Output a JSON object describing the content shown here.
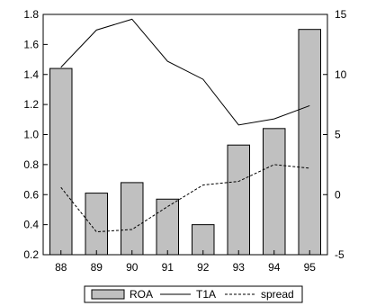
{
  "chart_data": {
    "type": "bar",
    "categories": [
      "88",
      "89",
      "90",
      "91",
      "92",
      "93",
      "94",
      "95"
    ],
    "left_axis": {
      "min": 0.2,
      "max": 1.8,
      "ticks": [
        "0.2",
        "0.4",
        "0.6",
        "0.8",
        "1.0",
        "1.2",
        "1.4",
        "1.6",
        "1.8"
      ]
    },
    "right_axis": {
      "min": -5,
      "max": 15,
      "ticks": [
        "-5",
        "0",
        "5",
        "10",
        "15"
      ]
    },
    "series": [
      {
        "name": "ROA",
        "kind": "bar",
        "axis": "left",
        "fill": "#c0c0c0",
        "values": [
          1.44,
          0.61,
          0.68,
          0.57,
          0.4,
          0.93,
          1.04,
          1.7
        ]
      },
      {
        "name": "T1A",
        "kind": "line",
        "axis": "right",
        "dash": "solid",
        "values": [
          10.6,
          13.7,
          14.6,
          11.1,
          9.6,
          5.8,
          6.3,
          7.4
        ]
      },
      {
        "name": "spread",
        "kind": "line",
        "axis": "right",
        "dash": "dashed",
        "values": [
          0.6,
          -3.1,
          -2.9,
          -1.0,
          0.8,
          1.1,
          2.5,
          2.2
        ]
      }
    ],
    "legend_position": "bottom-center",
    "grid": false
  }
}
